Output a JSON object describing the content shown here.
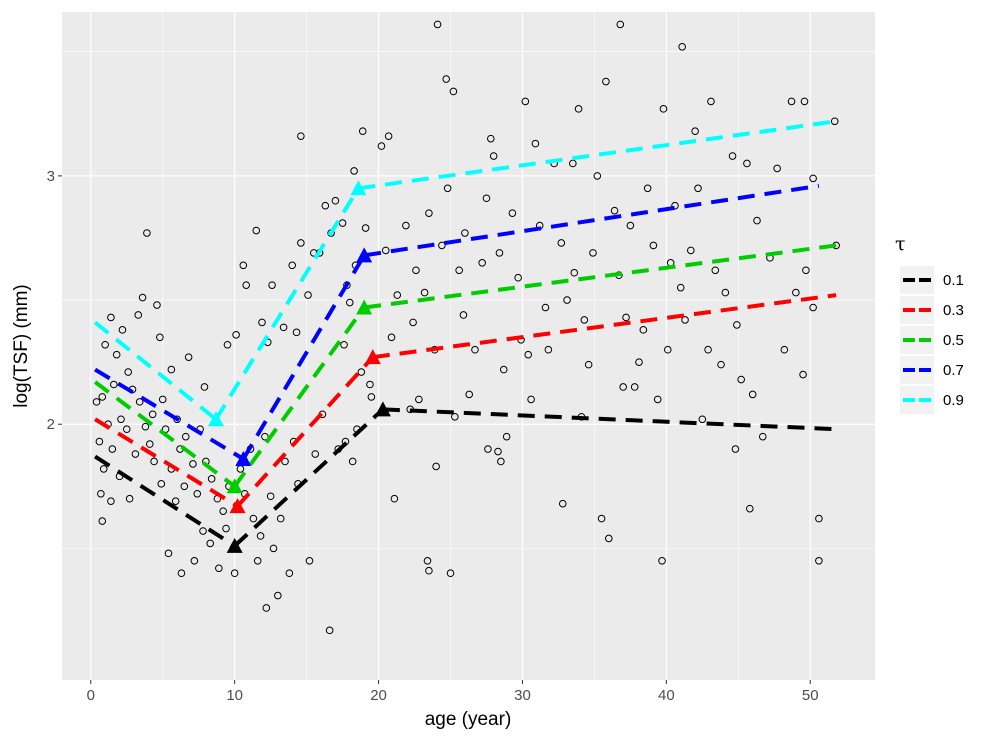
{
  "chart_data": {
    "type": "scatter",
    "title": "",
    "xlabel": "age (year)",
    "ylabel": "log(TSF) (mm)",
    "xlim": [
      -2,
      54.5
    ],
    "ylim": [
      0.97,
      3.66
    ],
    "x_ticks": [
      0,
      10,
      20,
      30,
      40,
      50
    ],
    "x_tick_labels": [
      "0",
      "10",
      "20",
      "30",
      "40",
      "50"
    ],
    "y_ticks": [
      2,
      3
    ],
    "y_tick_labels": [
      "2",
      "3"
    ],
    "grid": true,
    "legend_title": "τ",
    "legend_position": "right",
    "quantile_fits": [
      {
        "name": "0.1",
        "color": "#000000",
        "segments": [
          [
            [
              0.3,
              1.87
            ],
            [
              10.0,
              1.51
            ]
          ],
          [
            [
              10.0,
              1.51
            ],
            [
              20.3,
              2.06
            ]
          ],
          [
            [
              20.3,
              2.06
            ],
            [
              51.8,
              1.98
            ]
          ]
        ],
        "knots": [
          [
            10.0,
            1.51
          ],
          [
            20.3,
            2.06
          ]
        ]
      },
      {
        "name": "0.3",
        "color": "#ff0000",
        "segments": [
          [
            [
              0.3,
              2.02
            ],
            [
              10.2,
              1.67
            ]
          ],
          [
            [
              10.2,
              1.67
            ],
            [
              19.6,
              2.27
            ]
          ],
          [
            [
              19.6,
              2.27
            ],
            [
              51.8,
              2.52
            ]
          ]
        ],
        "knots": [
          [
            10.2,
            1.67
          ],
          [
            19.6,
            2.27
          ]
        ]
      },
      {
        "name": "0.5",
        "color": "#00cd00",
        "segments": [
          [
            [
              0.3,
              2.17
            ],
            [
              10.0,
              1.75
            ]
          ],
          [
            [
              10.0,
              1.75
            ],
            [
              19.0,
              2.47
            ]
          ],
          [
            [
              19.0,
              2.47
            ],
            [
              51.8,
              2.72
            ]
          ]
        ],
        "knots": [
          [
            10.0,
            1.75
          ],
          [
            19.0,
            2.47
          ]
        ]
      },
      {
        "name": "0.7",
        "color": "#0000ff",
        "segments": [
          [
            [
              0.3,
              2.22
            ],
            [
              10.6,
              1.86
            ]
          ],
          [
            [
              10.6,
              1.86
            ],
            [
              19.0,
              2.68
            ]
          ],
          [
            [
              19.0,
              2.68
            ],
            [
              50.6,
              2.96
            ]
          ]
        ],
        "knots": [
          [
            10.6,
            1.86
          ],
          [
            19.0,
            2.68
          ]
        ]
      },
      {
        "name": "0.9",
        "color": "#00ffff",
        "segments": [
          [
            [
              0.3,
              2.41
            ],
            [
              8.7,
              2.02
            ]
          ],
          [
            [
              8.7,
              2.02
            ],
            [
              18.6,
              2.95
            ]
          ],
          [
            [
              18.6,
              2.95
            ],
            [
              51.8,
              3.22
            ]
          ]
        ],
        "knots": [
          [
            8.7,
            2.02
          ],
          [
            18.6,
            2.95
          ]
        ]
      }
    ],
    "points": [
      [
        3.9,
        2.77
      ],
      [
        1.4,
        2.43
      ],
      [
        2.2,
        2.38
      ],
      [
        3.6,
        2.51
      ],
      [
        4.6,
        2.48
      ],
      [
        4.8,
        2.35
      ],
      [
        3.3,
        2.44
      ],
      [
        6.8,
        2.27
      ],
      [
        5.6,
        2.22
      ],
      [
        7.9,
        2.15
      ],
      [
        1.8,
        2.28
      ],
      [
        2.6,
        2.21
      ],
      [
        1.0,
        2.32
      ],
      [
        1.6,
        2.16
      ],
      [
        2.9,
        2.14
      ],
      [
        3.4,
        2.09
      ],
      [
        0.8,
        2.11
      ],
      [
        2.1,
        2.02
      ],
      [
        0.4,
        2.09
      ],
      [
        1.2,
        2.0
      ],
      [
        2.5,
        1.98
      ],
      [
        0.6,
        1.93
      ],
      [
        1.5,
        1.9
      ],
      [
        3.1,
        1.88
      ],
      [
        0.9,
        1.82
      ],
      [
        2.0,
        1.79
      ],
      [
        0.7,
        1.72
      ],
      [
        1.4,
        1.69
      ],
      [
        0.8,
        1.61
      ],
      [
        2.7,
        1.7
      ],
      [
        4.1,
        1.92
      ],
      [
        4.4,
        1.85
      ],
      [
        5.2,
        1.98
      ],
      [
        5.6,
        1.82
      ],
      [
        4.9,
        1.76
      ],
      [
        6.2,
        1.9
      ],
      [
        6.5,
        1.75
      ],
      [
        5.9,
        1.69
      ],
      [
        7.1,
        1.84
      ],
      [
        7.4,
        1.72
      ],
      [
        3.8,
        1.99
      ],
      [
        4.3,
        2.04
      ],
      [
        5.0,
        2.1
      ],
      [
        6.0,
        2.02
      ],
      [
        6.6,
        1.95
      ],
      [
        7.6,
        1.98
      ],
      [
        8.0,
        1.85
      ],
      [
        8.4,
        1.78
      ],
      [
        8.8,
        1.7
      ],
      [
        9.2,
        1.65
      ],
      [
        5.4,
        1.48
      ],
      [
        6.3,
        1.4
      ],
      [
        7.2,
        1.45
      ],
      [
        7.8,
        1.57
      ],
      [
        8.3,
        1.52
      ],
      [
        8.9,
        1.42
      ],
      [
        9.4,
        1.58
      ],
      [
        9.9,
        1.5
      ],
      [
        10.0,
        1.4
      ],
      [
        9.6,
        1.75
      ],
      [
        10.4,
        1.82
      ],
      [
        10.7,
        1.72
      ],
      [
        11.1,
        1.9
      ],
      [
        11.3,
        1.62
      ],
      [
        11.8,
        1.55
      ],
      [
        12.1,
        1.95
      ],
      [
        12.5,
        1.71
      ],
      [
        11.6,
        1.45
      ],
      [
        12.7,
        1.5
      ],
      [
        13.2,
        1.62
      ],
      [
        12.2,
        1.26
      ],
      [
        13.0,
        1.31
      ],
      [
        13.5,
        1.85
      ],
      [
        14.1,
        1.93
      ],
      [
        14.4,
        1.76
      ],
      [
        13.8,
        1.4
      ],
      [
        15.2,
        1.45
      ],
      [
        15.6,
        1.88
      ],
      [
        16.1,
        2.04
      ],
      [
        16.6,
        1.17
      ],
      [
        17.2,
        1.9
      ],
      [
        17.7,
        1.93
      ],
      [
        18.2,
        1.85
      ],
      [
        18.5,
        1.98
      ],
      [
        9.5,
        2.32
      ],
      [
        10.1,
        2.36
      ],
      [
        10.6,
        2.64
      ],
      [
        10.8,
        2.56
      ],
      [
        11.5,
        2.78
      ],
      [
        11.9,
        2.41
      ],
      [
        12.6,
        2.56
      ],
      [
        12.3,
        2.33
      ],
      [
        13.4,
        2.39
      ],
      [
        14.0,
        2.64
      ],
      [
        14.6,
        2.73
      ],
      [
        14.3,
        2.37
      ],
      [
        15.1,
        2.52
      ],
      [
        15.5,
        2.69
      ],
      [
        15.9,
        2.69
      ],
      [
        14.6,
        3.16
      ],
      [
        16.3,
        2.88
      ],
      [
        16.7,
        2.77
      ],
      [
        17.0,
        2.9
      ],
      [
        17.5,
        2.81
      ],
      [
        17.8,
        2.56
      ],
      [
        18.4,
        2.64
      ],
      [
        18.3,
        3.02
      ],
      [
        19.1,
        2.79
      ],
      [
        18.0,
        2.49
      ],
      [
        17.6,
        2.32
      ],
      [
        19.4,
        2.16
      ],
      [
        19.5,
        2.11
      ],
      [
        18.8,
        2.21
      ],
      [
        18.9,
        3.18
      ],
      [
        20.2,
        3.12
      ],
      [
        20.5,
        2.7
      ],
      [
        20.9,
        2.35
      ],
      [
        20.7,
        3.16
      ],
      [
        21.3,
        2.52
      ],
      [
        21.1,
        1.7
      ],
      [
        21.9,
        2.8
      ],
      [
        22.4,
        2.41
      ],
      [
        22.8,
        2.1
      ],
      [
        22.2,
        2.06
      ],
      [
        23.2,
        2.53
      ],
      [
        23.5,
        2.85
      ],
      [
        23.9,
        2.3
      ],
      [
        23.4,
        1.45
      ],
      [
        23.5,
        1.41
      ],
      [
        24.0,
        1.83
      ],
      [
        24.4,
        2.72
      ],
      [
        24.8,
        2.95
      ],
      [
        24.1,
        3.61
      ],
      [
        24.7,
        3.39
      ],
      [
        25.2,
        3.34
      ],
      [
        25.0,
        1.4
      ],
      [
        25.6,
        2.62
      ],
      [
        25.9,
        2.44
      ],
      [
        26.3,
        2.12
      ],
      [
        26.7,
        2.3
      ],
      [
        27.2,
        2.65
      ],
      [
        27.5,
        2.91
      ],
      [
        27.8,
        3.15
      ],
      [
        28.0,
        3.08
      ],
      [
        27.6,
        1.9
      ],
      [
        28.4,
        2.69
      ],
      [
        28.7,
        2.22
      ],
      [
        28.9,
        1.95
      ],
      [
        28.3,
        1.89
      ],
      [
        28.5,
        1.85
      ],
      [
        29.3,
        2.85
      ],
      [
        29.7,
        2.59
      ],
      [
        29.9,
        2.34
      ],
      [
        30.2,
        3.3
      ],
      [
        30.6,
        2.1
      ],
      [
        30.9,
        3.13
      ],
      [
        31.2,
        2.8
      ],
      [
        31.6,
        2.47
      ],
      [
        31.8,
        2.3
      ],
      [
        32.2,
        3.05
      ],
      [
        32.7,
        2.73
      ],
      [
        33.1,
        2.5
      ],
      [
        32.8,
        1.68
      ],
      [
        33.6,
        2.61
      ],
      [
        33.9,
        3.27
      ],
      [
        33.5,
        3.05
      ],
      [
        34.3,
        2.42
      ],
      [
        34.6,
        2.24
      ],
      [
        34.9,
        2.69
      ],
      [
        35.2,
        3.0
      ],
      [
        35.5,
        1.62
      ],
      [
        36.0,
        1.54
      ],
      [
        35.8,
        3.38
      ],
      [
        36.4,
        2.86
      ],
      [
        36.7,
        2.6
      ],
      [
        36.8,
        3.61
      ],
      [
        37.2,
        2.43
      ],
      [
        37.5,
        2.8
      ],
      [
        37.8,
        2.15
      ],
      [
        38.1,
        2.25
      ],
      [
        38.4,
        2.38
      ],
      [
        38.7,
        2.95
      ],
      [
        39.1,
        2.72
      ],
      [
        39.4,
        2.1
      ],
      [
        39.8,
        3.27
      ],
      [
        39.7,
        1.45
      ],
      [
        40.3,
        2.65
      ],
      [
        40.6,
        2.88
      ],
      [
        41.0,
        2.55
      ],
      [
        41.3,
        2.42
      ],
      [
        41.1,
        3.52
      ],
      [
        41.7,
        2.7
      ],
      [
        42.0,
        3.18
      ],
      [
        42.2,
        2.95
      ],
      [
        42.5,
        2.02
      ],
      [
        42.9,
        2.3
      ],
      [
        43.1,
        3.3
      ],
      [
        43.4,
        2.62
      ],
      [
        43.8,
        2.24
      ],
      [
        44.1,
        2.53
      ],
      [
        44.6,
        3.08
      ],
      [
        44.9,
        2.4
      ],
      [
        45.2,
        2.18
      ],
      [
        44.8,
        1.9
      ],
      [
        45.6,
        3.05
      ],
      [
        45.8,
        1.66
      ],
      [
        46.3,
        2.82
      ],
      [
        46.7,
        1.95
      ],
      [
        47.2,
        2.67
      ],
      [
        47.7,
        3.03
      ],
      [
        48.2,
        2.3
      ],
      [
        48.7,
        3.3
      ],
      [
        49.0,
        2.53
      ],
      [
        49.6,
        3.3
      ],
      [
        49.5,
        2.2
      ],
      [
        49.7,
        2.62
      ],
      [
        50.2,
        2.47
      ],
      [
        50.6,
        1.62
      ],
      [
        50.6,
        1.45
      ],
      [
        51.7,
        3.22
      ],
      [
        51.8,
        2.72
      ],
      [
        50.2,
        2.99
      ],
      [
        46.0,
        2.12
      ],
      [
        40.1,
        2.3
      ],
      [
        37.0,
        2.15
      ],
      [
        34.1,
        2.03
      ],
      [
        30.4,
        2.28
      ],
      [
        26.0,
        2.77
      ],
      [
        25.3,
        2.03
      ],
      [
        22.6,
        2.62
      ]
    ]
  }
}
